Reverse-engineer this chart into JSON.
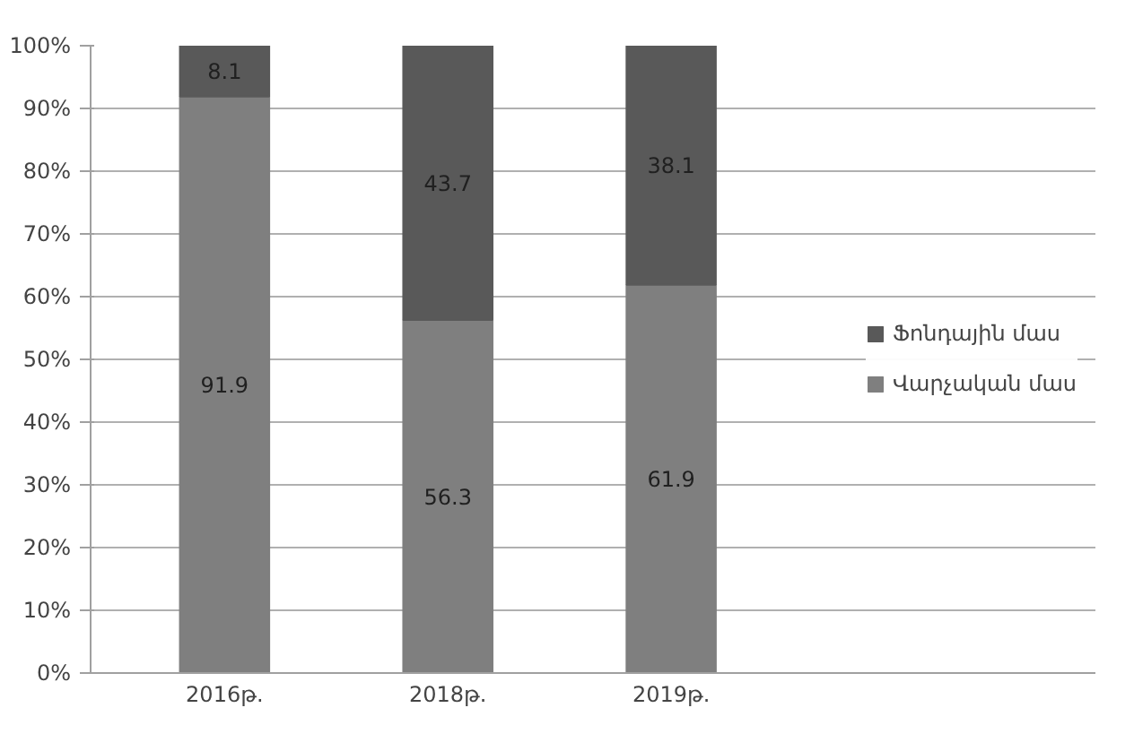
{
  "chart_data": {
    "type": "bar",
    "stacked": true,
    "categories": [
      "2016թ.",
      "2018թ.",
      "2019թ."
    ],
    "series": [
      {
        "name": "Վարչական մաս",
        "color": "#7f7f7f",
        "values": [
          91.9,
          56.3,
          61.9
        ]
      },
      {
        "name": "Ֆոնդային մաս",
        "color": "#595959",
        "values": [
          8.1,
          43.7,
          38.1
        ]
      }
    ],
    "ylim": [
      0,
      100
    ],
    "yticks": [
      {
        "value": 0,
        "label": "0%"
      },
      {
        "value": 10,
        "label": "10%"
      },
      {
        "value": 20,
        "label": "20%"
      },
      {
        "value": 30,
        "label": "30%"
      },
      {
        "value": 40,
        "label": "40%"
      },
      {
        "value": 50,
        "label": "50%"
      },
      {
        "value": 60,
        "label": "60%"
      },
      {
        "value": 70,
        "label": "70%"
      },
      {
        "value": 80,
        "label": "80%"
      },
      {
        "value": 90,
        "label": "90%"
      },
      {
        "value": 100,
        "label": "100%"
      }
    ],
    "grid": "y",
    "legend": "right",
    "data_labels": true
  }
}
